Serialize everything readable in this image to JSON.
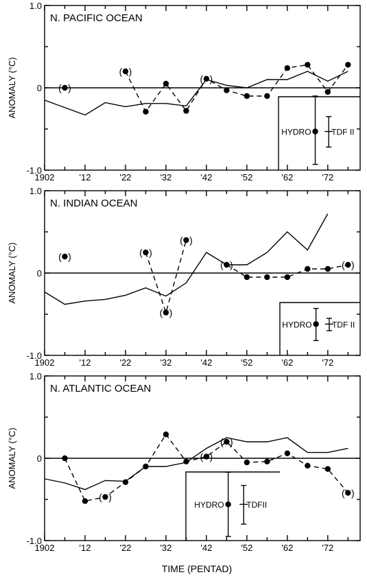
{
  "figure": {
    "xlabel": "TIME (PENTAD)",
    "ylabel": "ANOMALY (°C)",
    "x_tick_labels": [
      "1902",
      "'12",
      "'22",
      "'32",
      "'42",
      "'52",
      "'62",
      "'72"
    ]
  },
  "chart_data": [
    {
      "type": "line",
      "title": "N. PACIFIC OCEAN",
      "xlabel": "",
      "ylabel": "ANOMALY (°C)",
      "xlim": [
        1902,
        1980
      ],
      "ylim": [
        -1.0,
        1.0
      ],
      "yticks": [
        "1.0",
        "0",
        "-1.0"
      ],
      "series": [
        {
          "style": "solid",
          "x": [
            1902,
            1912,
            1917,
            1922,
            1927,
            1932,
            1937,
            1942,
            1947,
            1952,
            1957,
            1962,
            1967,
            1972,
            1977
          ],
          "y": [
            -0.15,
            -0.33,
            -0.18,
            -0.23,
            -0.19,
            -0.19,
            -0.22,
            0.1,
            0.03,
            0.0,
            0.1,
            0.1,
            0.2,
            0.08,
            0.2
          ]
        },
        {
          "style": "dashed",
          "x": [
            1922,
            1927,
            1932,
            1937,
            1942,
            1947,
            1952,
            1957,
            1962,
            1967,
            1972,
            1977
          ],
          "y": [
            0.2,
            -0.29,
            0.05,
            -0.28,
            0.11,
            -0.03,
            -0.1,
            -0.1,
            0.24,
            0.28,
            -0.05,
            0.28
          ],
          "parenthesized_x": [
            1922,
            1942
          ]
        },
        {
          "style": "isolated",
          "x": [
            1907
          ],
          "y": [
            0.0
          ],
          "parenthesized_x": [
            1907
          ]
        }
      ],
      "error_box": {
        "labels": [
          "HYDRO",
          "TDF II"
        ],
        "hydro": {
          "center": -0.53,
          "low": -0.93,
          "high": -0.1
        },
        "tdf": {
          "center": -0.53,
          "low": -0.72,
          "high": -0.35
        }
      }
    },
    {
      "type": "line",
      "title": "N. INDIAN OCEAN",
      "xlabel": "",
      "ylabel": "ANOMALY (°C)",
      "xlim": [
        1902,
        1980
      ],
      "ylim": [
        -1.0,
        1.0
      ],
      "yticks": [
        "1.0",
        "0",
        "-1.0"
      ],
      "series": [
        {
          "style": "solid",
          "x": [
            1902,
            1907,
            1912,
            1917,
            1922,
            1927,
            1932,
            1937,
            1942,
            1947,
            1952,
            1957,
            1962,
            1967,
            1972
          ],
          "y": [
            -0.23,
            -0.38,
            -0.34,
            -0.32,
            -0.27,
            -0.18,
            -0.28,
            -0.12,
            0.25,
            0.1,
            0.1,
            0.25,
            0.5,
            0.28,
            0.72
          ]
        },
        {
          "style": "dashed",
          "x": [
            1927,
            1932,
            1937
          ],
          "y": [
            0.25,
            -0.48,
            0.4
          ],
          "parenthesized_x": [
            1927,
            1932,
            1937
          ]
        },
        {
          "style": "dashed",
          "x": [
            1947,
            1952,
            1957,
            1962,
            1967,
            1972,
            1977
          ],
          "y": [
            0.1,
            -0.05,
            -0.05,
            -0.05,
            0.05,
            0.05,
            0.1
          ],
          "parenthesized_x": [
            1947,
            1977
          ]
        },
        {
          "style": "isolated",
          "x": [
            1907
          ],
          "y": [
            0.2
          ],
          "parenthesized_x": [
            1907
          ]
        }
      ],
      "error_box": {
        "labels": [
          "HYDRO",
          "TDF II"
        ],
        "hydro": {
          "center": -0.62,
          "low": -0.82,
          "high": -0.43
        },
        "tdf": {
          "center": -0.62,
          "low": -0.7,
          "high": -0.55
        }
      }
    },
    {
      "type": "line",
      "title": "N. ATLANTIC OCEAN",
      "xlabel": "TIME (PENTAD)",
      "ylabel": "ANOMALY (°C)",
      "xlim": [
        1902,
        1980
      ],
      "ylim": [
        -1.0,
        1.0
      ],
      "yticks": [
        "1.0",
        "0",
        "-1.0"
      ],
      "series": [
        {
          "style": "solid",
          "x": [
            1902,
            1907,
            1912,
            1917,
            1922,
            1927,
            1932,
            1937,
            1942,
            1947,
            1952,
            1957,
            1962,
            1967,
            1972,
            1977
          ],
          "y": [
            -0.25,
            -0.3,
            -0.38,
            -0.27,
            -0.28,
            -0.1,
            -0.1,
            -0.05,
            0.12,
            0.25,
            0.2,
            0.2,
            0.25,
            0.07,
            0.07,
            0.12
          ]
        },
        {
          "style": "dashed",
          "x": [
            1907,
            1912,
            1917,
            1922,
            1927,
            1932,
            1937,
            1942,
            1947,
            1952,
            1957,
            1962,
            1967,
            1972,
            1977
          ],
          "y": [
            0.0,
            -0.52,
            -0.47,
            -0.29,
            -0.1,
            0.29,
            -0.04,
            0.02,
            0.2,
            -0.05,
            -0.04,
            0.06,
            -0.09,
            -0.13,
            -0.42
          ],
          "parenthesized_x": [
            1917,
            1942,
            1947,
            1977
          ]
        }
      ],
      "error_box": {
        "labels": [
          "HYDRO",
          "TDFII"
        ],
        "hydro": {
          "center": -0.56,
          "low": -0.95,
          "high": -0.17
        },
        "tdf": {
          "center": -0.56,
          "low": -0.8,
          "high": -0.33
        }
      }
    }
  ]
}
